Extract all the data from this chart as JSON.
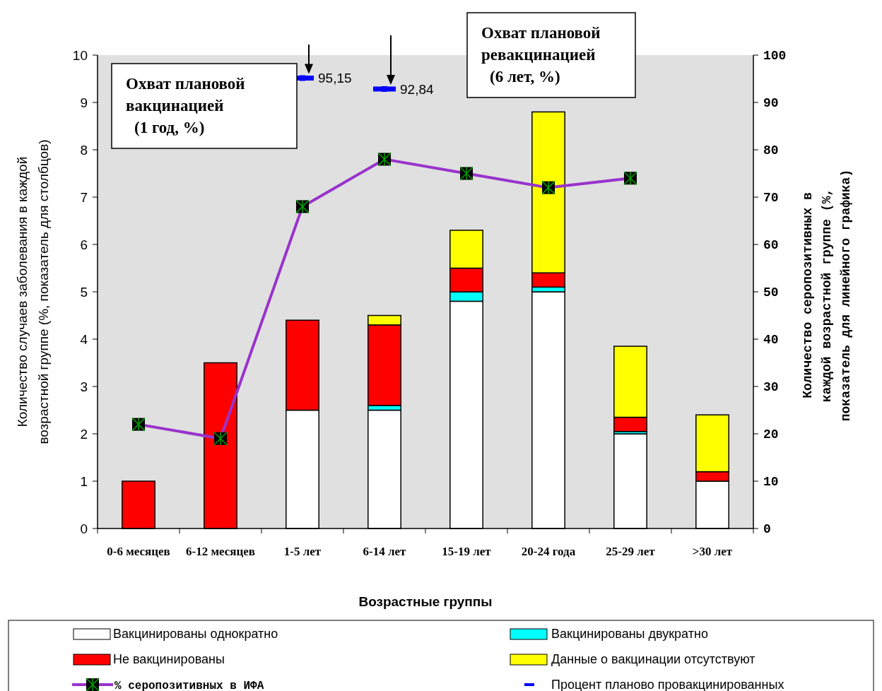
{
  "chart_data": {
    "type": "bar",
    "stacked": true,
    "categories": [
      "0-6 месяцев",
      "6-12 месяцев",
      "1-5 лет",
      "6-14 лет",
      "15-19 лет",
      "20-24 года",
      "25-29 лет",
      ">30 лет"
    ],
    "xlabel": "Возрастные группы",
    "ylabel": "Количество случаев заболевания в каждой возрастной группе (%, показатель для столбцов)",
    "y2label": "Количество серопозитивных в каждой возрастной группе (%, показатель для линейного графика)",
    "ylim": [
      0,
      10
    ],
    "yticks": [
      0,
      1,
      2,
      3,
      4,
      5,
      6,
      7,
      8,
      9,
      10
    ],
    "y2lim": [
      0,
      100
    ],
    "y2ticks": [
      0,
      10,
      20,
      30,
      40,
      50,
      60,
      70,
      80,
      90,
      100
    ],
    "grid": false,
    "legend": "bottom",
    "series": [
      {
        "name": "Вакцинированы однократно",
        "color": "#ffffff",
        "values": [
          0,
          0,
          2.5,
          2.5,
          4.8,
          5.0,
          2.0,
          1.0
        ]
      },
      {
        "name": "Вакцинированы двукратно",
        "color": "#00ffff",
        "values": [
          0,
          0,
          0,
          0.1,
          0.2,
          0.1,
          0.05,
          0
        ]
      },
      {
        "name": "Не вакцинированы",
        "color": "#ff0000",
        "values": [
          1.0,
          3.5,
          1.9,
          1.7,
          0.5,
          0.3,
          0.3,
          0.2
        ]
      },
      {
        "name": "Данные о вакцинации отсутствуют",
        "color": "#ffff00",
        "values": [
          0,
          0,
          0,
          0.2,
          0.8,
          3.4,
          1.5,
          1.2
        ]
      },
      {
        "name": "% серопозитивных в ИФА",
        "type": "line",
        "axis": "y2",
        "marker": "square",
        "color": "#9933cc",
        "values": [
          22,
          19,
          68,
          78,
          75,
          72,
          74,
          null
        ]
      },
      {
        "name": "Процент планово провакцинированных",
        "type": "scatter",
        "axis": "y2",
        "color": "#0000ff",
        "x": [
          "1-5 лет",
          "6-14 лет"
        ],
        "values": [
          95.15,
          92.84
        ],
        "value_labels": [
          "95,15",
          "92,84"
        ]
      }
    ],
    "annotations": [
      "Охват плановой вакцинацией (1 год, %)",
      "Охват плановой ревакцинацией (6 лет, %)"
    ]
  }
}
